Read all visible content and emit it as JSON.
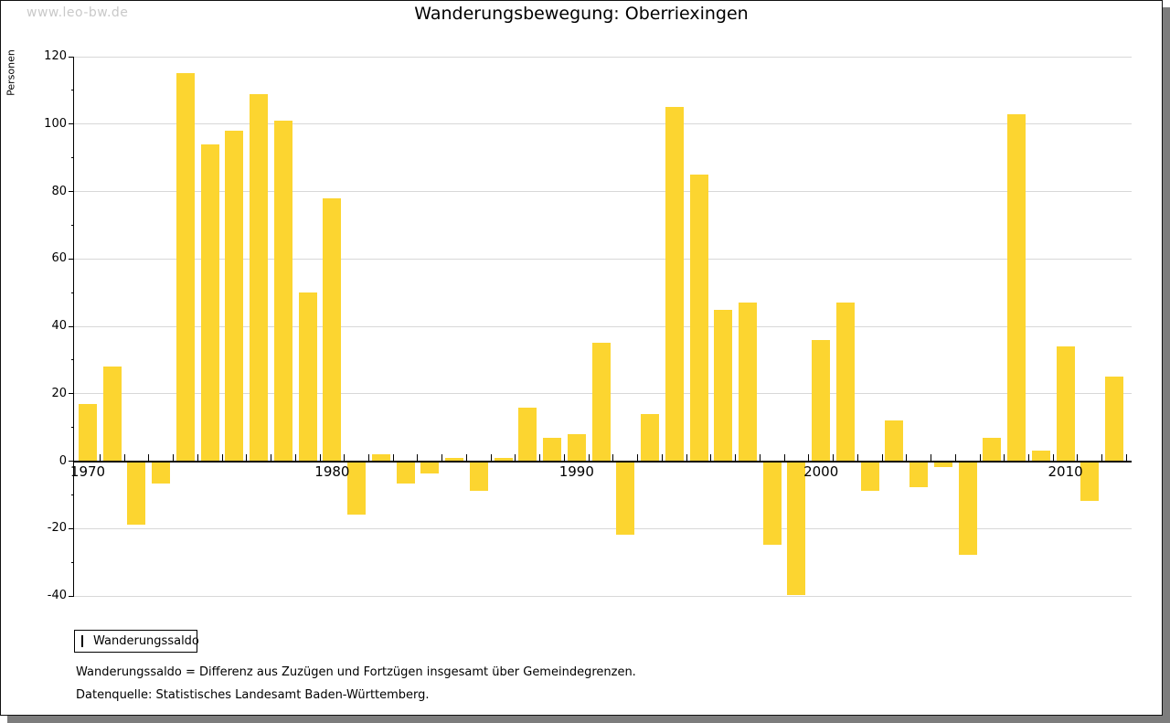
{
  "watermark": {
    "text": "www.leo-bw.de"
  },
  "header": {
    "title": "Wanderungsbewegung: Oberriexingen"
  },
  "legend": {
    "label": "Wanderungssaldo"
  },
  "footnotes": {
    "definition": "Wanderungssaldo = Differenz aus Zuzügen und Fortzügen insgesamt über Gemeindegrenzen.",
    "source": "Datenquelle: Statistisches Landesamt Baden-Württemberg."
  },
  "chart_data": {
    "type": "bar",
    "title": "Wanderungsbewegung: Oberriexingen",
    "xlabel": "",
    "ylabel": "Personen",
    "ylim": [
      -40,
      120
    ],
    "ytick_step": 20,
    "ytick_minor_step": 10,
    "ytick_labels": [
      "120",
      "100",
      "80",
      "60",
      "40",
      "20",
      "0",
      "-20",
      "-40"
    ],
    "xtick_labels": [
      "1970",
      "1980",
      "1990",
      "2000",
      "2010"
    ],
    "grid": true,
    "legend_position": "bottom-left",
    "bar_color": "#fcd530",
    "series_name": "Wanderungssaldo",
    "years": [
      1970,
      1971,
      1972,
      1973,
      1974,
      1975,
      1976,
      1977,
      1978,
      1979,
      1980,
      1981,
      1982,
      1983,
      1984,
      1985,
      1986,
      1987,
      1988,
      1989,
      1990,
      1991,
      1992,
      1993,
      1994,
      1995,
      1996,
      1997,
      1998,
      1999,
      2000,
      2001,
      2002,
      2003,
      2004,
      2005,
      2006,
      2007,
      2008,
      2009,
      2010,
      2011,
      2012
    ],
    "values": [
      17,
      28,
      -19,
      -7,
      115,
      94,
      98,
      109,
      101,
      50,
      78,
      -16,
      2,
      -7,
      -4,
      1,
      -9,
      1,
      16,
      7,
      8,
      35,
      -22,
      14,
      105,
      85,
      45,
      47,
      -25,
      -40,
      36,
      47,
      -9,
      12,
      -8,
      -2,
      -28,
      7,
      103,
      3,
      34,
      -12,
      25
    ]
  }
}
